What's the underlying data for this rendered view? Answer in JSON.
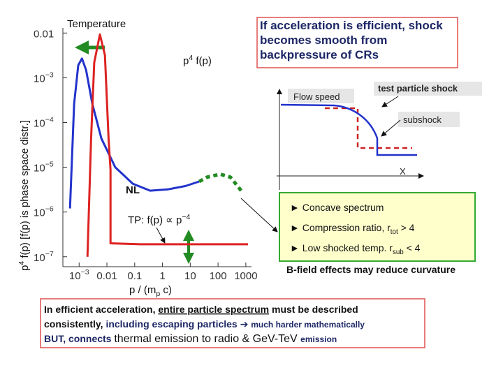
{
  "chart_data": {
    "type": "line",
    "log_x": true,
    "log_y": true,
    "xlim": [
      0.00026,
      1600
    ],
    "ylim": [
      6e-08,
      0.013
    ],
    "xticks": [
      {
        "value": 0.001,
        "label": "10",
        "exponent": "−3"
      },
      0.01,
      0.1,
      1,
      10,
      100,
      1000
    ],
    "yticks": [
      0.01,
      {
        "value": 0.001,
        "label": "10",
        "exponent": "−3"
      },
      {
        "value": 0.0001,
        "label": "10",
        "exponent": "−4"
      },
      {
        "value": 1e-05,
        "label": "10",
        "exponent": "−5"
      },
      {
        "value": 1e-06,
        "label": "10",
        "exponent": "−6"
      },
      {
        "value": 1e-07,
        "label": "10",
        "exponent": "−7"
      }
    ],
    "x_label": [
      {
        "text": "p  /  (m"
      },
      {
        "sub": "p"
      },
      {
        "text": " c)"
      }
    ],
    "y_label": [
      {
        "text": "p"
      },
      {
        "sup": "4"
      },
      {
        "text": " f(p)  [f(p) is phase space distr.]"
      }
    ],
    "annotations": {
      "temperature": "Temperature",
      "p4": [
        {
          "text": "p"
        },
        {
          "sup": "4"
        },
        {
          "text": " f(p)"
        }
      ],
      "nl": "NL",
      "tp": [
        {
          "text": "TP: f(p) ∝ p"
        },
        {
          "sup": "−4"
        }
      ]
    },
    "series": [
      {
        "color": "#2233cc",
        "x": [
          0.00047,
          0.00066,
          0.00093,
          0.00126,
          0.00178,
          0.003,
          0.0063,
          0.02,
          0.085,
          0.36,
          1.55,
          6.6,
          21
        ],
        "values": [
          1.2e-06,
          0.00026,
          0.0019,
          0.0027,
          0.0015,
          0.00026,
          4.4e-05,
          1e-05,
          4.3e-06,
          3e-06,
          3.2e-06,
          3.8e-06,
          4.8e-06
        ]
      },
      {
        "color": "#dd2222",
        "x": [
          0.002,
          0.0027,
          0.0035,
          0.0056,
          0.0085,
          0.0115,
          0.0135,
          0.0135,
          0.155,
          1200
        ],
        "values": [
          1e-07,
          4.4e-05,
          0.0022,
          0.0093,
          0.0032,
          4.4e-05,
          8.7e-06,
          2e-07,
          1.9e-07,
          1.9e-07
        ]
      },
      {
        "color": "#228b22",
        "dash": true,
        "x": [
          21,
          40,
          120,
          280,
          680
        ],
        "values": [
          4.8e-06,
          6e-06,
          7e-06,
          6e-06,
          3e-06
        ]
      }
    ]
  },
  "callout": [
    "If acceleration is efficient, shock",
    "becomes smooth from",
    "backpressure of CRs"
  ],
  "inset": {
    "y_label": "Flow speed",
    "tp_label": "test particle shock",
    "subshock": "subshock",
    "x_label": "X"
  },
  "bullets": [
    [
      {
        "text": "► Concave spectrum"
      }
    ],
    [
      {
        "text": "► Compression ratio, r"
      },
      {
        "sub": "tot"
      },
      {
        "text": " > 4"
      }
    ],
    [
      {
        "text": "► Low shocked temp. r"
      },
      {
        "sub": "sub"
      },
      {
        "text": " < 4"
      }
    ]
  ],
  "note": "B-field effects may reduce curvature",
  "summary": [
    [
      {
        "text": "In efficient acceleration, "
      },
      {
        "text": "entire particle spectrum"
      },
      {
        "text": " must be described"
      }
    ],
    [
      {
        "text": "consistently, "
      },
      {
        "text": "including escaping particles "
      },
      {
        "text": "➔ "
      },
      {
        "text": "much harder mathematically"
      }
    ],
    [
      {
        "text": "BUT, "
      },
      {
        "text": "connects "
      },
      {
        "text": "thermal emission to radio & GeV-TeV "
      },
      {
        "text": "emission"
      }
    ]
  ]
}
